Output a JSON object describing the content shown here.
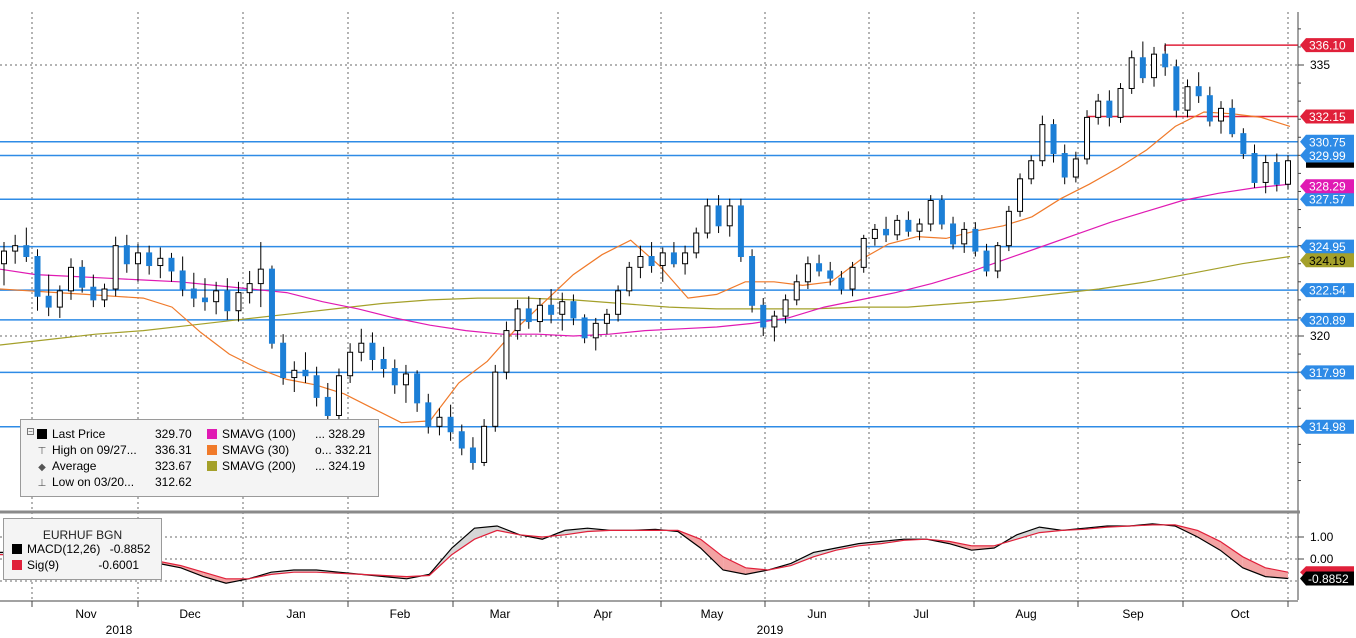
{
  "chart_data": {
    "type": "candlestick",
    "instrument": "EURHUF BGN",
    "x_ticks": {
      "months": [
        "Nov",
        "Dec",
        "Jan",
        "Feb",
        "Mar",
        "Apr",
        "May",
        "Jun",
        "Jul",
        "Aug",
        "Sep",
        "Oct"
      ],
      "years": [
        "2018",
        "2019"
      ]
    },
    "y_ticks": [
      "335",
      "320"
    ],
    "ylim": [
      311,
      338
    ],
    "candles": [
      [
        324.0,
        325.2,
        322.8,
        324.7
      ],
      [
        324.7,
        325.6,
        324.0,
        325.0
      ],
      [
        325.0,
        326.0,
        324.1,
        324.4
      ],
      [
        324.4,
        324.8,
        321.4,
        322.2
      ],
      [
        322.2,
        323.4,
        321.1,
        321.6
      ],
      [
        321.6,
        322.8,
        321.0,
        322.5
      ],
      [
        322.5,
        324.3,
        322.0,
        323.8
      ],
      [
        323.8,
        324.2,
        322.4,
        322.7
      ],
      [
        322.7,
        323.4,
        321.6,
        322.0
      ],
      [
        322.0,
        322.9,
        321.6,
        322.6
      ],
      [
        322.6,
        325.5,
        322.2,
        325.0
      ],
      [
        325.0,
        325.6,
        323.5,
        324.0
      ],
      [
        324.0,
        325.1,
        323.0,
        324.6
      ],
      [
        324.6,
        325.0,
        323.4,
        323.9
      ],
      [
        323.9,
        324.9,
        323.2,
        324.3
      ],
      [
        324.3,
        324.6,
        323.0,
        323.6
      ],
      [
        323.6,
        324.4,
        322.2,
        322.6
      ],
      [
        322.6,
        323.5,
        321.6,
        322.1
      ],
      [
        322.1,
        323.2,
        321.4,
        321.9
      ],
      [
        321.9,
        323.0,
        321.2,
        322.5
      ],
      [
        322.5,
        323.2,
        320.9,
        321.4
      ],
      [
        321.4,
        323.0,
        320.8,
        322.4
      ],
      [
        322.4,
        323.6,
        321.8,
        322.9
      ],
      [
        322.9,
        325.2,
        321.6,
        323.7
      ],
      [
        323.7,
        323.9,
        319.3,
        319.6
      ],
      [
        319.6,
        320.1,
        317.3,
        317.7
      ],
      [
        317.7,
        318.6,
        316.9,
        318.1
      ],
      [
        318.1,
        319.1,
        317.4,
        317.8
      ],
      [
        317.8,
        318.3,
        316.1,
        316.6
      ],
      [
        316.6,
        317.4,
        314.5,
        315.6
      ],
      [
        315.6,
        318.2,
        315.2,
        317.8
      ],
      [
        317.8,
        319.6,
        317.4,
        319.1
      ],
      [
        319.1,
        320.4,
        318.6,
        319.6
      ],
      [
        319.6,
        320.2,
        318.1,
        318.7
      ],
      [
        318.7,
        319.4,
        317.7,
        318.2
      ],
      [
        318.2,
        318.7,
        316.8,
        317.3
      ],
      [
        317.3,
        318.4,
        316.3,
        317.9
      ],
      [
        317.9,
        318.1,
        315.8,
        316.3
      ],
      [
        316.3,
        316.8,
        314.6,
        315.0
      ],
      [
        315.0,
        316.0,
        314.5,
        315.5
      ],
      [
        315.5,
        316.2,
        314.2,
        314.7
      ],
      [
        314.7,
        315.1,
        313.4,
        313.8
      ],
      [
        313.8,
        314.4,
        312.6,
        313.0
      ],
      [
        313.0,
        315.4,
        312.8,
        315.0
      ],
      [
        315.0,
        318.4,
        314.7,
        318.0
      ],
      [
        318.0,
        320.8,
        317.6,
        320.3
      ],
      [
        320.3,
        322.0,
        319.8,
        321.5
      ],
      [
        321.5,
        322.2,
        320.4,
        320.8
      ],
      [
        320.8,
        322.1,
        320.2,
        321.7
      ],
      [
        321.7,
        322.6,
        320.7,
        321.2
      ],
      [
        321.2,
        322.4,
        320.3,
        321.9
      ],
      [
        321.9,
        322.3,
        320.6,
        321.0
      ],
      [
        321.0,
        321.2,
        319.6,
        319.9
      ],
      [
        319.9,
        321.0,
        319.2,
        320.7
      ],
      [
        320.7,
        321.5,
        320.1,
        321.2
      ],
      [
        321.2,
        322.8,
        320.8,
        322.5
      ],
      [
        322.5,
        324.1,
        322.2,
        323.8
      ],
      [
        323.8,
        325.0,
        323.2,
        324.4
      ],
      [
        324.4,
        325.2,
        323.5,
        323.9
      ],
      [
        323.9,
        324.9,
        323.0,
        324.6
      ],
      [
        324.6,
        325.2,
        323.8,
        324.0
      ],
      [
        324.0,
        325.0,
        323.4,
        324.6
      ],
      [
        324.6,
        326.0,
        324.3,
        325.7
      ],
      [
        325.7,
        327.6,
        325.4,
        327.2
      ],
      [
        327.2,
        327.8,
        325.7,
        326.1
      ],
      [
        326.1,
        327.6,
        325.5,
        327.2
      ],
      [
        327.2,
        327.6,
        324.1,
        324.4
      ],
      [
        324.4,
        324.8,
        321.3,
        321.7
      ],
      [
        321.7,
        322.1,
        320.0,
        320.5
      ],
      [
        320.5,
        321.4,
        319.7,
        321.1
      ],
      [
        321.1,
        322.3,
        320.7,
        322.0
      ],
      [
        322.0,
        323.4,
        321.7,
        323.0
      ],
      [
        323.0,
        324.4,
        322.6,
        324.0
      ],
      [
        324.0,
        324.5,
        323.3,
        323.6
      ],
      [
        323.6,
        324.1,
        322.8,
        323.2
      ],
      [
        323.2,
        323.6,
        322.3,
        322.6
      ],
      [
        322.6,
        324.1,
        322.2,
        323.8
      ],
      [
        323.8,
        325.6,
        323.5,
        325.4
      ],
      [
        325.4,
        326.2,
        325.0,
        325.9
      ],
      [
        325.9,
        326.6,
        325.2,
        325.6
      ],
      [
        325.6,
        326.7,
        325.3,
        326.4
      ],
      [
        326.4,
        326.9,
        325.5,
        325.8
      ],
      [
        325.8,
        326.5,
        325.3,
        326.2
      ],
      [
        326.2,
        327.8,
        325.8,
        327.5
      ],
      [
        327.5,
        327.8,
        325.9,
        326.2
      ],
      [
        326.2,
        326.6,
        324.8,
        325.1
      ],
      [
        325.1,
        326.3,
        324.6,
        325.9
      ],
      [
        325.9,
        326.3,
        324.4,
        324.7
      ],
      [
        324.7,
        325.1,
        323.3,
        323.6
      ],
      [
        323.6,
        325.2,
        323.2,
        325.0
      ],
      [
        325.0,
        327.2,
        324.7,
        326.9
      ],
      [
        326.9,
        329.0,
        326.6,
        328.7
      ],
      [
        328.7,
        330.0,
        328.4,
        329.7
      ],
      [
        329.7,
        332.2,
        329.4,
        331.7
      ],
      [
        331.7,
        332.0,
        329.6,
        330.1
      ],
      [
        330.1,
        330.6,
        328.4,
        328.8
      ],
      [
        328.8,
        330.2,
        328.5,
        329.8
      ],
      [
        329.8,
        332.5,
        329.5,
        332.1
      ],
      [
        332.1,
        333.4,
        331.7,
        333.0
      ],
      [
        333.0,
        333.6,
        331.6,
        332.1
      ],
      [
        332.1,
        334.0,
        331.8,
        333.7
      ],
      [
        333.7,
        335.8,
        333.4,
        335.4
      ],
      [
        335.4,
        336.3,
        334.0,
        334.3
      ],
      [
        334.3,
        336.0,
        333.8,
        335.6
      ],
      [
        335.6,
        336.2,
        334.4,
        334.9
      ],
      [
        334.9,
        335.3,
        332.1,
        332.5
      ],
      [
        332.5,
        334.2,
        332.1,
        333.8
      ],
      [
        333.8,
        334.6,
        332.9,
        333.3
      ],
      [
        333.3,
        333.8,
        331.6,
        331.9
      ],
      [
        331.9,
        333.0,
        331.2,
        332.6
      ],
      [
        332.6,
        333.1,
        331.0,
        331.2
      ],
      [
        331.2,
        331.5,
        329.8,
        330.1
      ],
      [
        330.1,
        330.6,
        328.2,
        328.5
      ],
      [
        328.5,
        330.0,
        327.9,
        329.6
      ],
      [
        329.6,
        330.1,
        328.0,
        328.4
      ],
      [
        328.4,
        330.0,
        328.1,
        329.7
      ]
    ],
    "sma30": [
      322.6,
      322.5,
      322.4,
      322.3,
      322.2,
      322.1,
      321.6,
      320.2,
      319.0,
      318.2,
      317.6,
      317.3,
      316.8,
      316.0,
      315.2,
      315.3,
      317.4,
      318.6,
      320.4,
      321.9,
      323.4,
      324.5,
      325.3,
      323.9,
      322.1,
      322.3,
      323.0,
      323.0,
      322.8,
      323.0,
      324.2,
      325.1,
      325.5,
      325.4,
      325.8,
      326.1,
      326.6,
      327.6,
      328.4,
      329.3,
      330.3,
      331.6,
      332.4,
      332.3,
      332.1,
      331.6
    ],
    "sma100": [
      323.7,
      323.4,
      323.3,
      323.2,
      323.1,
      323.0,
      322.8,
      322.6,
      322.4,
      321.9,
      321.5,
      321.0,
      320.6,
      320.3,
      320.1,
      320.1,
      320.0,
      320.1,
      320.3,
      320.4,
      320.5,
      320.7,
      321.0,
      321.6,
      322.0,
      322.4,
      322.9,
      323.5,
      324.2,
      324.9,
      325.6,
      326.3,
      326.9,
      327.5,
      327.9,
      328.2,
      328.4
    ],
    "sma200": [
      319.5,
      319.8,
      320.1,
      320.3,
      320.6,
      320.9,
      321.2,
      321.5,
      321.8,
      322.0,
      322.1,
      322.1,
      322.0,
      321.8,
      321.6,
      321.5,
      321.5,
      321.5,
      321.6,
      321.6,
      321.8,
      322.0,
      322.3,
      322.6,
      323.0,
      323.5,
      324.0,
      324.4
    ],
    "levels": [
      {
        "label": "336.10",
        "value": 336.1,
        "kind": "resistance"
      },
      {
        "label": "332.15",
        "value": 332.15,
        "kind": "resistance"
      },
      {
        "label": "330.75",
        "value": 330.75,
        "kind": "level"
      },
      {
        "label": "329.99",
        "value": 329.99,
        "kind": "level"
      },
      {
        "label": "327.57",
        "value": 327.57,
        "kind": "level"
      },
      {
        "label": "324.95",
        "value": 324.95,
        "kind": "level"
      },
      {
        "label": "322.54",
        "value": 322.54,
        "kind": "level"
      },
      {
        "label": "320.89",
        "value": 320.89,
        "kind": "level"
      },
      {
        "label": "317.99",
        "value": 317.99,
        "kind": "level"
      },
      {
        "label": "314.98",
        "value": 314.98,
        "kind": "level"
      }
    ],
    "side_tags": [
      {
        "label": "328.29",
        "value": 328.29,
        "kind": "sma100"
      },
      {
        "label": "324.19",
        "value": 324.19,
        "kind": "sma200"
      }
    ],
    "legend": [
      {
        "col": 0,
        "glyph": "box",
        "color": "#000000",
        "label": "Last Price",
        "value": "329.70"
      },
      {
        "col": 0,
        "glyph": "high",
        "color": "#555555",
        "label": "High on 09/27...",
        "value": "336.31"
      },
      {
        "col": 0,
        "glyph": "avg",
        "color": "#555555",
        "label": "Average",
        "value": "323.67"
      },
      {
        "col": 0,
        "glyph": "low",
        "color": "#555555",
        "label": "Low on 03/20...",
        "value": "312.62"
      },
      {
        "col": 1,
        "glyph": "box",
        "color": "#e01ab3",
        "label": "SMAVG (100)",
        "value": "... 328.29"
      },
      {
        "col": 1,
        "glyph": "box",
        "color": "#f07a2a",
        "label": "SMAVG (30)",
        "value": "o... 332.21"
      },
      {
        "col": 1,
        "glyph": "box",
        "color": "#a4a02a",
        "label": "SMAVG (200)",
        "value": "... 324.19"
      }
    ],
    "indicator": {
      "title": "EURHUF BGN",
      "macd_label": "MACD(12,26)",
      "macd_value": "-0.8852",
      "sig_label": "Sig(9)",
      "sig_value": "-0.6001",
      "y_ticks": [
        "1.00",
        "0.00"
      ],
      "ylim": [
        -1.5,
        2.0
      ],
      "macd": [
        0.3,
        0.3,
        0.35,
        0.3,
        0.15,
        0.0,
        -0.1,
        -0.2,
        -0.4,
        -0.8,
        -1.1,
        -0.9,
        -0.6,
        -0.5,
        -0.5,
        -0.6,
        -0.7,
        -0.8,
        -0.9,
        -0.7,
        0.5,
        1.4,
        1.5,
        1.1,
        0.9,
        1.3,
        1.4,
        1.3,
        1.3,
        1.35,
        1.25,
        0.5,
        -0.5,
        -0.7,
        -0.5,
        -0.2,
        0.3,
        0.5,
        0.7,
        0.8,
        0.9,
        0.9,
        0.7,
        0.4,
        0.5,
        1.1,
        1.45,
        1.3,
        1.4,
        1.5,
        1.5,
        1.6,
        1.5,
        1.0,
        0.4,
        -0.4,
        -0.8,
        -0.885
      ],
      "signal": [
        0.2,
        0.2,
        0.25,
        0.3,
        0.2,
        0.1,
        0.0,
        -0.1,
        -0.3,
        -0.6,
        -0.9,
        -0.9,
        -0.7,
        -0.6,
        -0.6,
        -0.65,
        -0.7,
        -0.75,
        -0.8,
        -0.75,
        0.2,
        0.9,
        1.3,
        1.1,
        1.0,
        1.1,
        1.25,
        1.3,
        1.3,
        1.3,
        1.3,
        0.9,
        0.1,
        -0.4,
        -0.5,
        -0.3,
        0.1,
        0.4,
        0.6,
        0.7,
        0.85,
        0.9,
        0.8,
        0.6,
        0.6,
        0.9,
        1.2,
        1.3,
        1.35,
        1.45,
        1.5,
        1.55,
        1.55,
        1.3,
        0.8,
        0.1,
        -0.4,
        -0.6001
      ]
    },
    "colors": {
      "up": "#1c7fd6",
      "down": "#1c7fd6",
      "level": "#2e8be6",
      "resistance": "#e0203a",
      "sma30": "#f07a2a",
      "sma100": "#e01ab3",
      "sma200": "#a4a02a",
      "grid": "#6a6a6a",
      "divider": "#8a8a8a",
      "macd": "#000000",
      "signal": "#e0203a",
      "fill_up": "#d6d6d6",
      "fill_down": "#f3a3a3"
    }
  }
}
